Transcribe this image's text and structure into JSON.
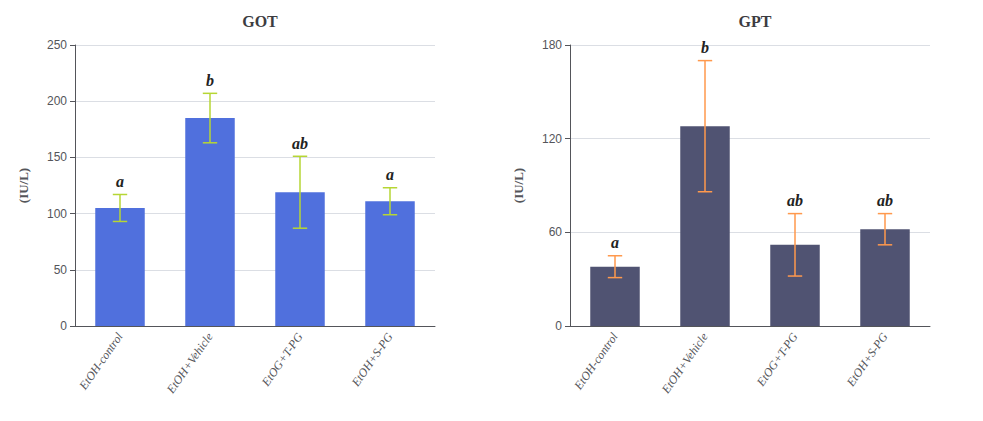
{
  "chart_data": [
    {
      "type": "bar",
      "title": "GOT",
      "ylabel": "(IU/L)",
      "categories": [
        "EtOH-control",
        "EtOH+Vehicle",
        "EtOG+T-PG",
        "EtOH+S-PG"
      ],
      "values": [
        105,
        185,
        119,
        111
      ],
      "errors": [
        12,
        22,
        32,
        12
      ],
      "letters": [
        "a",
        "b",
        "ab",
        "a"
      ],
      "ylim": [
        0,
        250
      ],
      "yticks": [
        0,
        50,
        100,
        150,
        200,
        250
      ]
    },
    {
      "type": "bar",
      "title": "GPT",
      "ylabel": "(IU/L)",
      "categories": [
        "EtOH-control",
        "EtOH+Vehicle",
        "EtOG+T-PG",
        "EtOH+S-PG"
      ],
      "values": [
        38,
        128,
        52,
        62
      ],
      "errors": [
        7,
        42,
        20,
        10
      ],
      "letters": [
        "a",
        "b",
        "ab",
        "ab"
      ],
      "ylim": [
        0,
        180
      ],
      "yticks": [
        0,
        60,
        120,
        180
      ]
    }
  ]
}
